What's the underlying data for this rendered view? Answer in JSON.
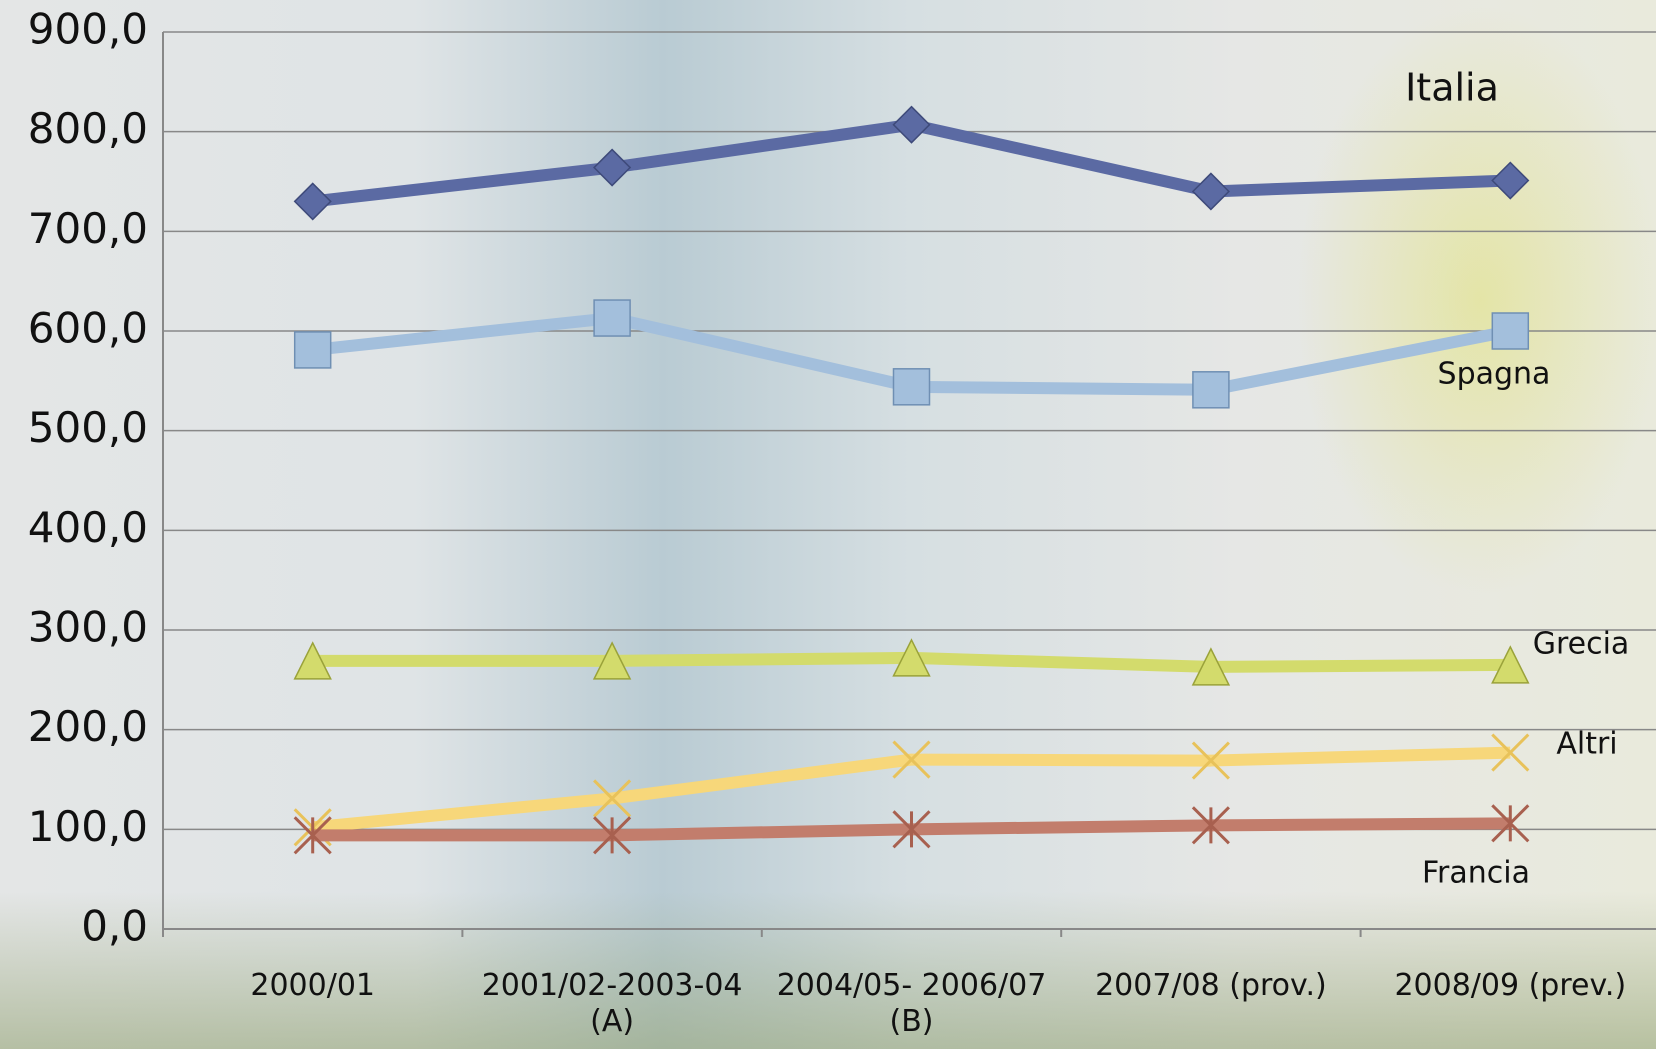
{
  "chart_data": {
    "type": "line",
    "categories": [
      "2000/01",
      "2001/02-2003-04\n(A)",
      "2004/05- 2006/07\n(B)",
      "2007/08 (prov.)",
      "2008/09 (prev.)"
    ],
    "series": [
      {
        "name": "Italia",
        "color": "#5b6aa3",
        "marker": "diamond",
        "values": [
          730,
          764,
          807,
          740,
          751
        ]
      },
      {
        "name": "Spagna",
        "color": "#a3bfdc",
        "marker": "square",
        "values": [
          581,
          613,
          544,
          541,
          600
        ]
      },
      {
        "name": "Grecia",
        "color": "#d3db6c",
        "marker": "triangle",
        "values": [
          269,
          269,
          272,
          263,
          265
        ]
      },
      {
        "name": "Altri",
        "color": "#f7d77a",
        "marker": "x",
        "values": [
          102,
          131,
          170,
          169,
          177
        ]
      },
      {
        "name": "Francia",
        "color": "#c27d6c",
        "marker": "star",
        "values": [
          94,
          94,
          100,
          104,
          106
        ]
      }
    ],
    "ylim": [
      0,
      900
    ],
    "yticks": [
      {
        "value": 0,
        "label": "0,0"
      },
      {
        "value": 100,
        "label": "100,0"
      },
      {
        "value": 200,
        "label": "200,0"
      },
      {
        "value": 300,
        "label": "300,0"
      },
      {
        "value": 400,
        "label": "400,0"
      },
      {
        "value": 500,
        "label": "500,0"
      },
      {
        "value": 600,
        "label": "600,0"
      },
      {
        "value": 700,
        "label": "700,0"
      },
      {
        "value": 800,
        "label": "800,0"
      },
      {
        "value": 900,
        "label": "900,0"
      }
    ],
    "grid": true
  }
}
